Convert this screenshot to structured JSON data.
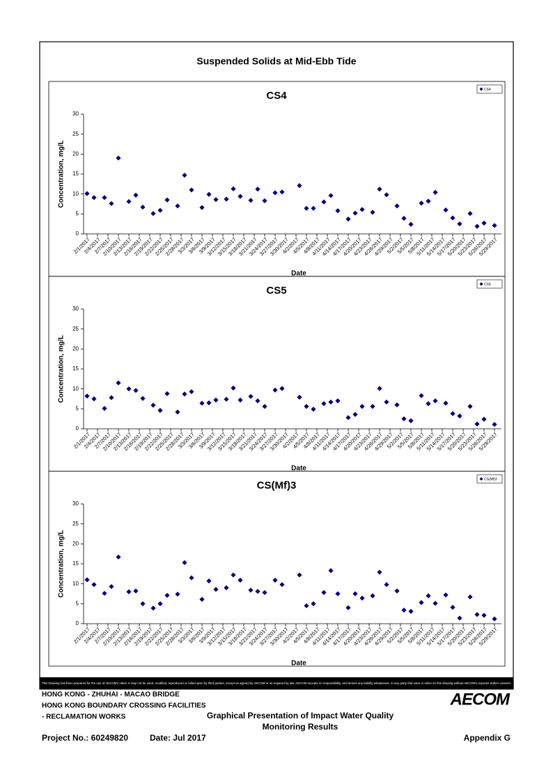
{
  "header": {
    "title": "Suspended Solids at Mid-Ebb Tide"
  },
  "disclaimer": "This Drawing has been prepared for the use of AECOM's client. It may not be used, modified, reproduced or relied upon by third parties, except as agreed by AECOM or as required by law. AECOM accepts no responsibility, and denies any liability whatsoever, to any party that uses or relies on this drawing without AECOM's express written consent.",
  "footer": {
    "left": [
      "HONG KONG - ZHUHAI - MACAO BRIDGE",
      "HONG KONG BOUNDARY CROSSING FACILITIES",
      "- RECLAMATION WORKS"
    ],
    "center": [
      "Graphical Presentation of Impact Water Quality",
      "Monitoring Results"
    ],
    "project": "Project No.: 60249820",
    "date": "Date: Jul 2017",
    "appendix": "Appendix G",
    "logo": "AECOM"
  },
  "chart_data": [
    {
      "type": "scatter",
      "title": "CS4",
      "x_label": "Date",
      "y_label": "Concentration, mg/L",
      "x": [
        "2/1/2017",
        "2/3/2017",
        "2/6/2017",
        "2/8/2017",
        "2/10/2017",
        "2/13/2017",
        "2/15/2017",
        "2/17/2017",
        "2/20/2017",
        "2/22/2017",
        "2/24/2017",
        "2/27/2017",
        "3/1/2017",
        "3/3/2017",
        "3/6/2017",
        "3/8/2017",
        "3/10/2017",
        "3/13/2017",
        "3/15/2017",
        "3/17/2017",
        "3/20/2017",
        "3/22/2017",
        "3/24/2017",
        "3/27/2017",
        "3/29/2017",
        "4/3/2017",
        "4/5/2017",
        "4/7/2017",
        "4/10/2017",
        "4/12/2017",
        "4/14/2017",
        "4/17/2017",
        "4/19/2017",
        "4/21/2017",
        "4/24/2017",
        "4/26/2017",
        "4/28/2017",
        "5/1/2017",
        "5/3/2017",
        "5/5/2017",
        "5/8/2017",
        "5/10/2017",
        "5/12/2017",
        "5/15/2017",
        "5/17/2017",
        "5/19/2017",
        "5/22/2017",
        "5/24/2017",
        "5/26/2017",
        "5/29/2017"
      ],
      "series": [
        {
          "name": "CS4",
          "color": "#000080",
          "values": [
            10.1,
            9.1,
            9.1,
            7.6,
            19,
            8.1,
            9.7,
            6.7,
            5.1,
            5.9,
            8.5,
            7.0,
            14.7,
            11.0,
            6.6,
            9.9,
            8.6,
            8.7,
            11.3,
            9.4,
            8.4,
            11.2,
            8.3,
            10.3,
            10.5,
            12.1,
            6.4,
            6.4,
            8.0,
            9.6,
            5.8,
            3.7,
            5.2,
            6.1,
            5.4,
            11.2,
            9.8,
            7.0,
            3.9,
            2.4,
            7.7,
            8.2,
            10.4,
            6.0,
            4.0,
            2.5,
            5.1,
            1.9,
            2.7,
            2.1
          ]
        }
      ],
      "xlim": [
        "1/31/2017",
        "5/31/2017"
      ],
      "xticks": [
        "2/1/2017",
        "2/4/2017",
        "2/7/2017",
        "2/10/2017",
        "2/13/2017",
        "2/16/2017",
        "2/19/2017",
        "2/22/2017",
        "2/25/2017",
        "2/28/2017",
        "3/3/2017",
        "3/6/2017",
        "3/9/2017",
        "3/12/2017",
        "3/15/2017",
        "3/18/2017",
        "3/21/2017",
        "3/24/2017",
        "3/27/2017",
        "3/30/2017",
        "4/2/2017",
        "4/5/2017",
        "4/8/2017",
        "4/11/2017",
        "4/14/2017",
        "4/17/2017",
        "4/20/2017",
        "4/23/2017",
        "4/26/2017",
        "4/29/2017",
        "5/2/2017",
        "5/5/2017",
        "5/8/2017",
        "5/11/2017",
        "5/14/2017",
        "5/17/2017",
        "5/20/2017",
        "5/23/2017",
        "5/26/2017",
        "5/29/2017"
      ],
      "ylim": [
        0,
        30
      ],
      "yticks": [
        0,
        5,
        10,
        15,
        20,
        25,
        30
      ],
      "grid": false,
      "legend": "upper right"
    },
    {
      "type": "scatter",
      "title": "CS5",
      "x_label": "Date",
      "y_label": "Concentration, mg/L",
      "x": [
        "2/1/2017",
        "2/3/2017",
        "2/6/2017",
        "2/8/2017",
        "2/10/2017",
        "2/13/2017",
        "2/15/2017",
        "2/17/2017",
        "2/20/2017",
        "2/22/2017",
        "2/24/2017",
        "2/27/2017",
        "3/1/2017",
        "3/3/2017",
        "3/6/2017",
        "3/8/2017",
        "3/10/2017",
        "3/13/2017",
        "3/15/2017",
        "3/17/2017",
        "3/20/2017",
        "3/22/2017",
        "3/24/2017",
        "3/27/2017",
        "3/29/2017",
        "4/3/2017",
        "4/5/2017",
        "4/7/2017",
        "4/10/2017",
        "4/12/2017",
        "4/14/2017",
        "4/17/2017",
        "4/19/2017",
        "4/21/2017",
        "4/24/2017",
        "4/26/2017",
        "4/28/2017",
        "5/1/2017",
        "5/3/2017",
        "5/5/2017",
        "5/8/2017",
        "5/10/2017",
        "5/12/2017",
        "5/15/2017",
        "5/17/2017",
        "5/19/2017",
        "5/22/2017",
        "5/24/2017",
        "5/26/2017",
        "5/29/2017"
      ],
      "series": [
        {
          "name": "CS5",
          "color": "#000080",
          "values": [
            8.2,
            7.5,
            5.1,
            7.8,
            11.5,
            10.0,
            9.6,
            7.6,
            5.9,
            4.6,
            8.8,
            4.2,
            8.7,
            9.3,
            6.4,
            6.5,
            7.2,
            7.4,
            10.2,
            7.2,
            8.1,
            7.0,
            5.6,
            9.7,
            10.1,
            7.9,
            5.6,
            4.9,
            6.3,
            6.7,
            7.0,
            2.8,
            3.6,
            5.6,
            5.6,
            10.1,
            6.7,
            6.0,
            2.5,
            2.0,
            8.3,
            6.3,
            7.0,
            6.4,
            3.8,
            3.2,
            5.6,
            1.2,
            2.4,
            1.1
          ]
        }
      ],
      "xlim": [
        "1/31/2017",
        "5/31/2017"
      ],
      "xticks": [
        "2/1/2017",
        "2/4/2017",
        "2/7/2017",
        "2/10/2017",
        "2/13/2017",
        "2/16/2017",
        "2/19/2017",
        "2/22/2017",
        "2/25/2017",
        "2/28/2017",
        "3/3/2017",
        "3/6/2017",
        "3/9/2017",
        "3/12/2017",
        "3/15/2017",
        "3/18/2017",
        "3/21/2017",
        "3/24/2017",
        "3/27/2017",
        "3/30/2017",
        "4/2/2017",
        "4/5/2017",
        "4/8/2017",
        "4/11/2017",
        "4/14/2017",
        "4/17/2017",
        "4/20/2017",
        "4/23/2017",
        "4/26/2017",
        "4/29/2017",
        "5/2/2017",
        "5/5/2017",
        "5/8/2017",
        "5/11/2017",
        "5/14/2017",
        "5/17/2017",
        "5/20/2017",
        "5/23/2017",
        "5/26/2017",
        "5/29/2017"
      ],
      "ylim": [
        0,
        30
      ],
      "yticks": [
        0,
        5,
        10,
        15,
        20,
        25,
        30
      ],
      "grid": false,
      "legend": "upper right"
    },
    {
      "type": "scatter",
      "title": "CS(Mf)3",
      "x_label": "Date",
      "y_label": "Concentration, mg/L",
      "x": [
        "2/1/2017",
        "2/3/2017",
        "2/6/2017",
        "2/8/2017",
        "2/10/2017",
        "2/13/2017",
        "2/15/2017",
        "2/17/2017",
        "2/20/2017",
        "2/22/2017",
        "2/24/2017",
        "2/27/2017",
        "3/1/2017",
        "3/3/2017",
        "3/6/2017",
        "3/8/2017",
        "3/10/2017",
        "3/13/2017",
        "3/15/2017",
        "3/17/2017",
        "3/20/2017",
        "3/22/2017",
        "3/24/2017",
        "3/27/2017",
        "3/29/2017",
        "4/3/2017",
        "4/5/2017",
        "4/7/2017",
        "4/10/2017",
        "4/12/2017",
        "4/14/2017",
        "4/17/2017",
        "4/19/2017",
        "4/21/2017",
        "4/24/2017",
        "4/26/2017",
        "4/28/2017",
        "5/1/2017",
        "5/3/2017",
        "5/5/2017",
        "5/8/2017",
        "5/10/2017",
        "5/12/2017",
        "5/15/2017",
        "5/17/2017",
        "5/19/2017",
        "5/22/2017",
        "5/24/2017",
        "5/26/2017",
        "5/29/2017"
      ],
      "series": [
        {
          "name": "CS(Mf)3",
          "color": "#000080",
          "values": [
            11.0,
            9.8,
            7.6,
            9.3,
            16.7,
            8.0,
            8.2,
            5.0,
            3.9,
            5.0,
            7.1,
            7.4,
            15.3,
            11.5,
            6.1,
            10.7,
            8.6,
            9.0,
            12.2,
            10.9,
            8.4,
            8.1,
            7.8,
            10.9,
            9.8,
            12.2,
            4.5,
            5.0,
            7.8,
            13.3,
            7.5,
            4.0,
            7.5,
            6.4,
            7.0,
            12.9,
            9.8,
            8.2,
            3.4,
            3.1,
            5.3,
            7.0,
            5.1,
            7.2,
            4.1,
            1.4,
            6.7,
            2.3,
            2.1,
            1.2
          ]
        }
      ],
      "xlim": [
        "1/31/2017",
        "5/31/2017"
      ],
      "xticks": [
        "2/1/2017",
        "2/4/2017",
        "2/7/2017",
        "2/10/2017",
        "2/13/2017",
        "2/16/2017",
        "2/19/2017",
        "2/22/2017",
        "2/25/2017",
        "2/28/2017",
        "3/3/2017",
        "3/6/2017",
        "3/9/2017",
        "3/12/2017",
        "3/15/2017",
        "3/18/2017",
        "3/21/2017",
        "3/24/2017",
        "3/27/2017",
        "3/30/2017",
        "4/2/2017",
        "4/5/2017",
        "4/8/2017",
        "4/11/2017",
        "4/14/2017",
        "4/17/2017",
        "4/20/2017",
        "4/23/2017",
        "4/26/2017",
        "4/29/2017",
        "5/2/2017",
        "5/5/2017",
        "5/8/2017",
        "5/11/2017",
        "5/14/2017",
        "5/17/2017",
        "5/20/2017",
        "5/23/2017",
        "5/26/2017",
        "5/29/2017"
      ],
      "ylim": [
        0,
        30
      ],
      "yticks": [
        0,
        5,
        10,
        15,
        20,
        25,
        30
      ],
      "grid": false,
      "legend": "upper right"
    }
  ]
}
